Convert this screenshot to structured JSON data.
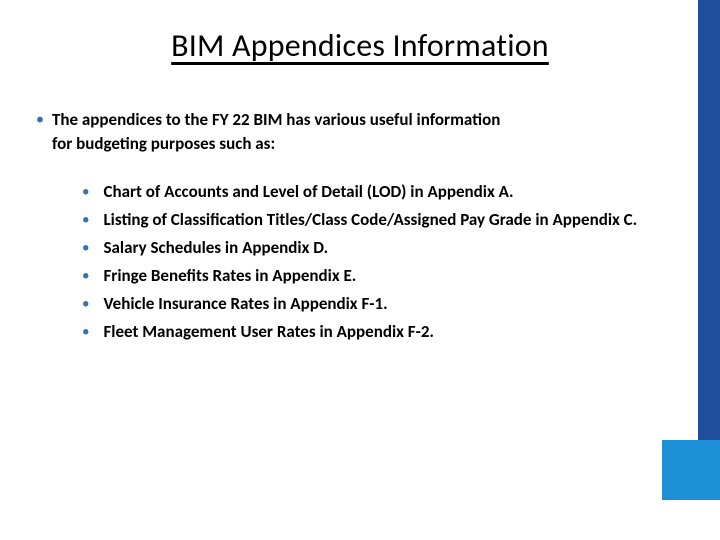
{
  "colors": {
    "bullet": "#2e74b5",
    "text": "#000000",
    "accent_dark": "#1f4e9c",
    "accent_light": "#1d8fd6",
    "background": "#ffffff"
  },
  "typography": {
    "title_fontsize": 32,
    "body_fontsize": 17,
    "title_weight": 400,
    "body_weight": 600
  },
  "title": "BIM Appendices Information",
  "intro": {
    "line1": "The appendices to the FY 22 BIM has various useful information",
    "line2": "for budgeting purposes such as:"
  },
  "items": [
    "Chart of Accounts and Level of Detail (LOD) in Appendix A.",
    "Listing of Classification Titles/Class Code/Assigned Pay Grade in Appendix C.",
    "Salary Schedules in Appendix D.",
    "Fringe Benefits Rates in Appendix E.",
    "Vehicle Insurance Rates in Appendix F-1.",
    "Fleet Management User Rates in Appendix F-2."
  ]
}
